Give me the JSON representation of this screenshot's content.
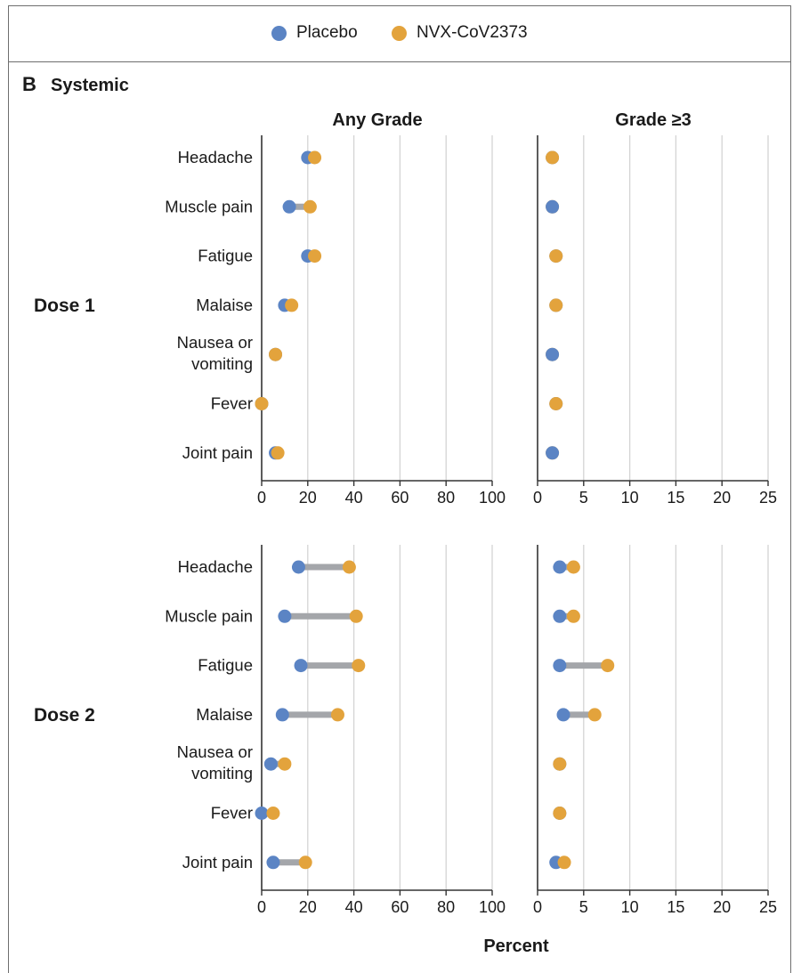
{
  "legend": {
    "placebo": {
      "label": "Placebo",
      "color": "#5b84c4"
    },
    "vaccine": {
      "label": "NVX-CoV2373",
      "color": "#e3a33c"
    }
  },
  "panel": {
    "letter": "B",
    "title": "Systemic"
  },
  "columns": {
    "any_grade": "Any Grade",
    "grade3": "Grade ≥3"
  },
  "x_axis_label": "Percent",
  "connector_color": "#a4a6aa",
  "chart_data": [
    {
      "type": "dumbbell",
      "dose": "Dose 1",
      "column": "Any Grade",
      "categories": [
        "Headache",
        "Muscle pain",
        "Fatigue",
        "Malaise",
        "Nausea or vomiting",
        "Fever",
        "Joint pain"
      ],
      "series": [
        {
          "name": "Placebo",
          "values": [
            20,
            12,
            20,
            10,
            6,
            0,
            6
          ]
        },
        {
          "name": "NVX-CoV2373",
          "values": [
            23,
            21,
            23,
            13,
            6,
            0,
            7
          ]
        }
      ],
      "xlim": [
        0,
        100
      ],
      "xticks": [
        0,
        20,
        40,
        60,
        80,
        100
      ]
    },
    {
      "type": "dumbbell",
      "dose": "Dose 1",
      "column": "Grade ≥3",
      "categories": [
        "Headache",
        "Muscle pain",
        "Fatigue",
        "Malaise",
        "Nausea or vomiting",
        "Fever",
        "Joint pain"
      ],
      "series": [
        {
          "name": "Placebo",
          "values": [
            1.6,
            1.6,
            2.0,
            2.0,
            1.6,
            2.0,
            1.6
          ]
        },
        {
          "name": "NVX-CoV2373",
          "values": [
            1.6,
            1.6,
            2.0,
            2.0,
            1.6,
            2.0,
            1.6
          ]
        }
      ],
      "top_color": [
        "vaccine",
        "placebo",
        "vaccine",
        "vaccine",
        "placebo",
        "vaccine",
        "placebo"
      ],
      "xlim": [
        0,
        25
      ],
      "xticks": [
        0,
        5,
        10,
        15,
        20,
        25
      ]
    },
    {
      "type": "dumbbell",
      "dose": "Dose 2",
      "column": "Any Grade",
      "categories": [
        "Headache",
        "Muscle pain",
        "Fatigue",
        "Malaise",
        "Nausea or vomiting",
        "Fever",
        "Joint pain"
      ],
      "series": [
        {
          "name": "Placebo",
          "values": [
            16,
            10,
            17,
            9,
            4,
            0,
            5
          ]
        },
        {
          "name": "NVX-CoV2373",
          "values": [
            38,
            41,
            42,
            33,
            10,
            5,
            19
          ]
        }
      ],
      "xlim": [
        0,
        100
      ],
      "xticks": [
        0,
        20,
        40,
        60,
        80,
        100
      ]
    },
    {
      "type": "dumbbell",
      "dose": "Dose 2",
      "column": "Grade ≥3",
      "categories": [
        "Headache",
        "Muscle pain",
        "Fatigue",
        "Malaise",
        "Nausea or vomiting",
        "Fever",
        "Joint pain"
      ],
      "series": [
        {
          "name": "Placebo",
          "values": [
            2.4,
            2.4,
            2.4,
            2.8,
            2.4,
            2.4,
            2.0
          ]
        },
        {
          "name": "NVX-CoV2373",
          "values": [
            3.9,
            3.9,
            7.6,
            6.2,
            2.4,
            2.4,
            2.9
          ]
        }
      ],
      "top_color": [
        "vaccine",
        "vaccine",
        "vaccine",
        "vaccine",
        "vaccine",
        "vaccine",
        "vaccine"
      ],
      "xlim": [
        0,
        25
      ],
      "xticks": [
        0,
        5,
        10,
        15,
        20,
        25
      ]
    }
  ]
}
